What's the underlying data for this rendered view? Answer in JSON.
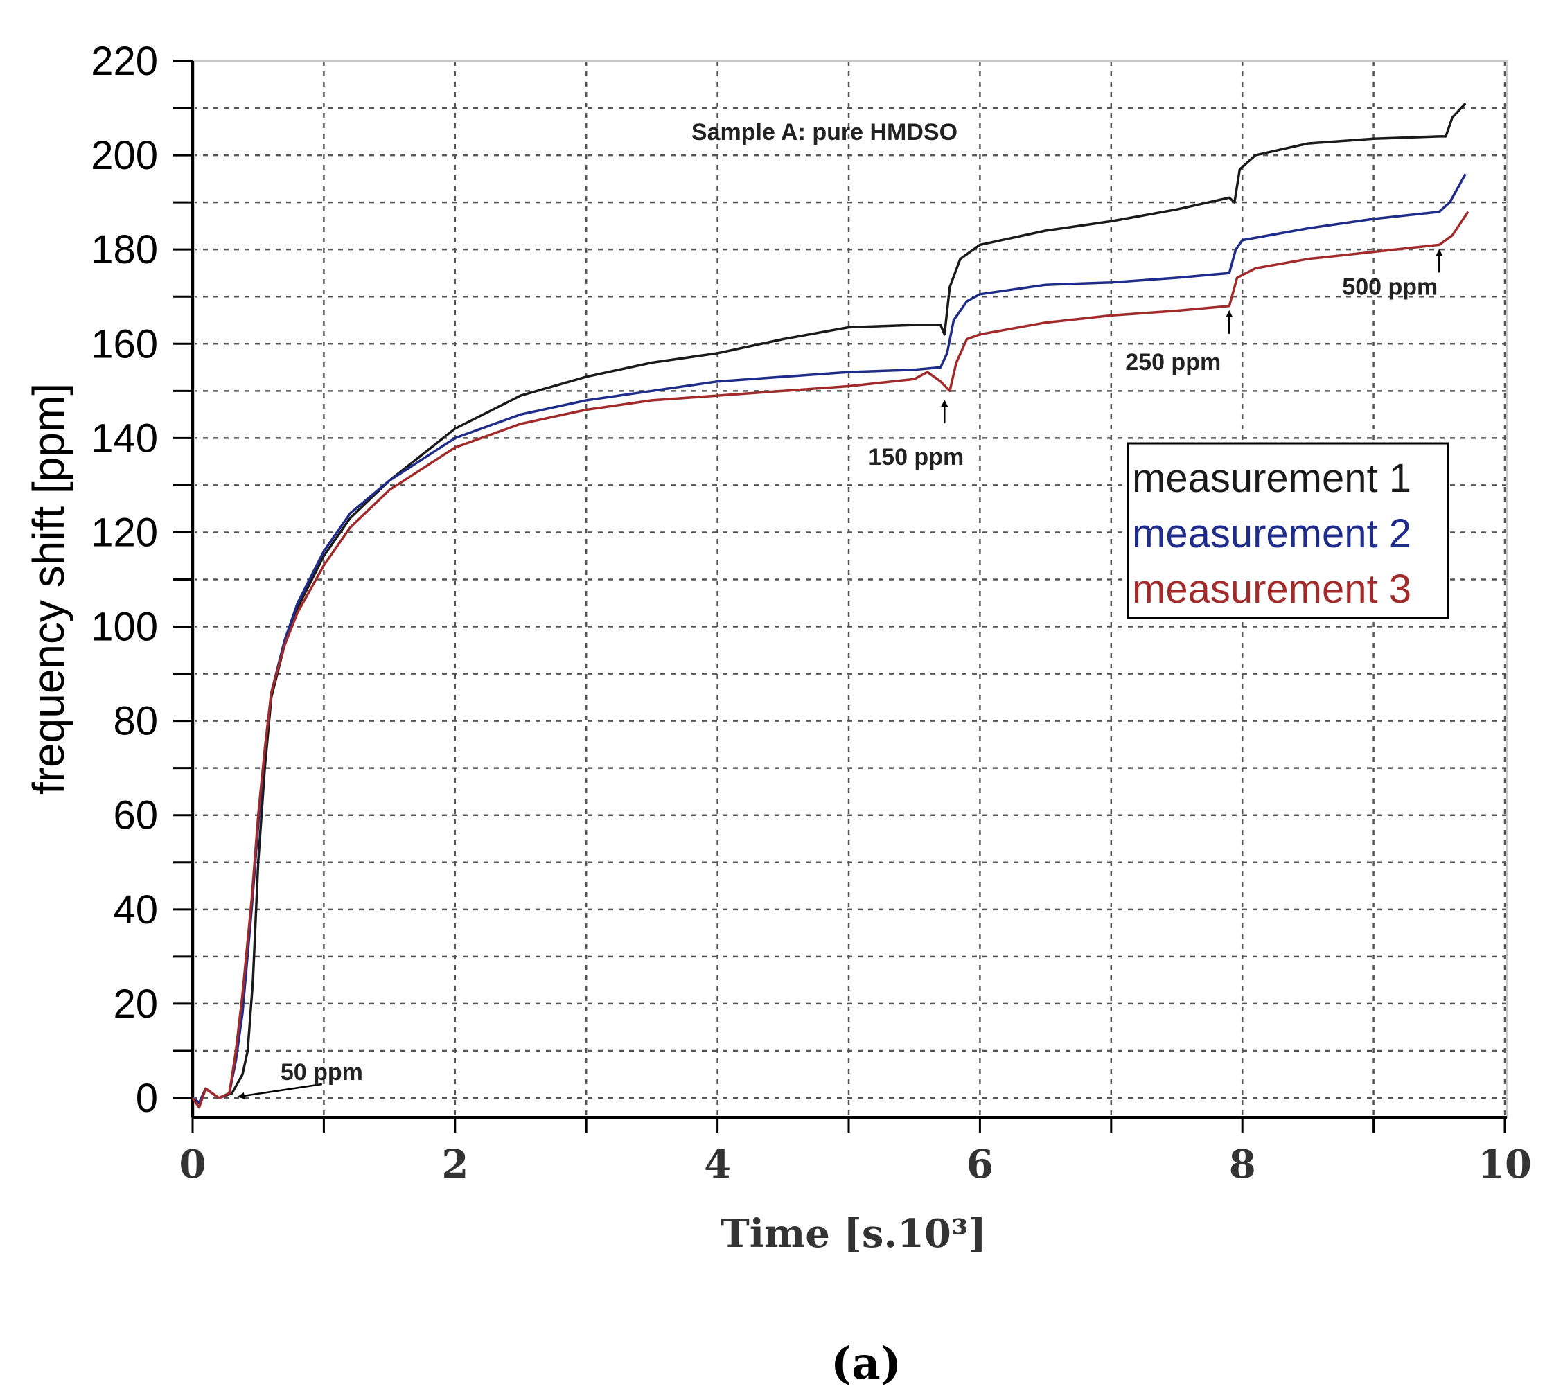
{
  "chart_data": {
    "type": "line",
    "title": "Sample A: pure HMDSO",
    "xlabel": "Time [s.10³]",
    "ylabel": "frequency shift  [ppm]",
    "xlim": [
      0,
      10
    ],
    "ylim": [
      0,
      220
    ],
    "x_ticks": [
      "0",
      "2",
      "4",
      "6",
      "8",
      "10"
    ],
    "y_ticks": [
      "0",
      "20",
      "40",
      "60",
      "80",
      "100",
      "120",
      "140",
      "160",
      "180",
      "200",
      "220"
    ],
    "grid": true,
    "legend_position": "right",
    "series": [
      {
        "name": "measurement 1",
        "color": "#1a1a1a",
        "points": [
          [
            0,
            0
          ],
          [
            0.05,
            -1
          ],
          [
            0.1,
            2
          ],
          [
            0.2,
            0
          ],
          [
            0.3,
            1
          ],
          [
            0.38,
            5
          ],
          [
            0.42,
            10
          ],
          [
            0.46,
            25
          ],
          [
            0.5,
            50
          ],
          [
            0.55,
            70
          ],
          [
            0.6,
            85
          ],
          [
            0.7,
            96
          ],
          [
            0.8,
            104
          ],
          [
            1.0,
            115
          ],
          [
            1.2,
            123
          ],
          [
            1.5,
            131
          ],
          [
            2.0,
            142
          ],
          [
            2.5,
            149
          ],
          [
            3.0,
            153
          ],
          [
            3.5,
            156
          ],
          [
            4.0,
            158
          ],
          [
            4.5,
            161
          ],
          [
            5.0,
            163.5
          ],
          [
            5.5,
            164
          ],
          [
            5.7,
            164
          ],
          [
            5.73,
            162
          ],
          [
            5.77,
            172
          ],
          [
            5.85,
            178
          ],
          [
            6.0,
            181
          ],
          [
            6.5,
            184
          ],
          [
            7.0,
            186
          ],
          [
            7.5,
            188.5
          ],
          [
            7.9,
            191
          ],
          [
            7.94,
            190
          ],
          [
            7.98,
            197
          ],
          [
            8.1,
            200
          ],
          [
            8.5,
            202.5
          ],
          [
            9.0,
            203.5
          ],
          [
            9.5,
            204
          ],
          [
            9.55,
            204
          ],
          [
            9.6,
            208
          ],
          [
            9.7,
            211
          ]
        ]
      },
      {
        "name": "measurement 2",
        "color": "#1f2c8a",
        "points": [
          [
            0,
            0
          ],
          [
            0.05,
            -1
          ],
          [
            0.1,
            2
          ],
          [
            0.2,
            0
          ],
          [
            0.28,
            1
          ],
          [
            0.33,
            8
          ],
          [
            0.38,
            18
          ],
          [
            0.45,
            40
          ],
          [
            0.5,
            58
          ],
          [
            0.55,
            74
          ],
          [
            0.6,
            86
          ],
          [
            0.7,
            97
          ],
          [
            0.8,
            105
          ],
          [
            1.0,
            116
          ],
          [
            1.2,
            124
          ],
          [
            1.5,
            131
          ],
          [
            2.0,
            140
          ],
          [
            2.5,
            145
          ],
          [
            3.0,
            148
          ],
          [
            3.5,
            150
          ],
          [
            4.0,
            152
          ],
          [
            4.5,
            153
          ],
          [
            5.0,
            154
          ],
          [
            5.5,
            154.5
          ],
          [
            5.7,
            155
          ],
          [
            5.75,
            158
          ],
          [
            5.8,
            165
          ],
          [
            5.9,
            169
          ],
          [
            6.0,
            170.5
          ],
          [
            6.5,
            172.5
          ],
          [
            7.0,
            173
          ],
          [
            7.5,
            174
          ],
          [
            7.9,
            175
          ],
          [
            7.95,
            180
          ],
          [
            8.0,
            182
          ],
          [
            8.5,
            184.5
          ],
          [
            9.0,
            186.5
          ],
          [
            9.5,
            188
          ],
          [
            9.58,
            190
          ],
          [
            9.7,
            196
          ]
        ]
      },
      {
        "name": "measurement 3",
        "color": "#a12a2a",
        "points": [
          [
            0,
            0
          ],
          [
            0.05,
            -2
          ],
          [
            0.1,
            2
          ],
          [
            0.2,
            0
          ],
          [
            0.28,
            1
          ],
          [
            0.33,
            10
          ],
          [
            0.38,
            22
          ],
          [
            0.45,
            42
          ],
          [
            0.5,
            60
          ],
          [
            0.55,
            74
          ],
          [
            0.6,
            86
          ],
          [
            0.7,
            96
          ],
          [
            0.8,
            103
          ],
          [
            1.0,
            113
          ],
          [
            1.2,
            121
          ],
          [
            1.5,
            129
          ],
          [
            2.0,
            138
          ],
          [
            2.5,
            143
          ],
          [
            3.0,
            146
          ],
          [
            3.5,
            148
          ],
          [
            4.0,
            149
          ],
          [
            4.5,
            150
          ],
          [
            5.0,
            151
          ],
          [
            5.5,
            152.5
          ],
          [
            5.6,
            154
          ],
          [
            5.7,
            152
          ],
          [
            5.77,
            150
          ],
          [
            5.82,
            156
          ],
          [
            5.9,
            161
          ],
          [
            6.0,
            162
          ],
          [
            6.5,
            164.5
          ],
          [
            7.0,
            166
          ],
          [
            7.5,
            167
          ],
          [
            7.9,
            168
          ],
          [
            7.96,
            174
          ],
          [
            8.1,
            176
          ],
          [
            8.5,
            178
          ],
          [
            9.0,
            179.5
          ],
          [
            9.5,
            181
          ],
          [
            9.6,
            183
          ],
          [
            9.72,
            188
          ]
        ]
      }
    ],
    "annotations": [
      {
        "text": "50 ppm",
        "x": 0.3,
        "y": 0
      },
      {
        "text": "150 ppm",
        "x": 5.73,
        "y": 149
      },
      {
        "text": "250 ppm",
        "x": 7.9,
        "y": 168
      },
      {
        "text": "500 ppm",
        "x": 9.5,
        "y": 181
      }
    ]
  },
  "caption": "(a)"
}
